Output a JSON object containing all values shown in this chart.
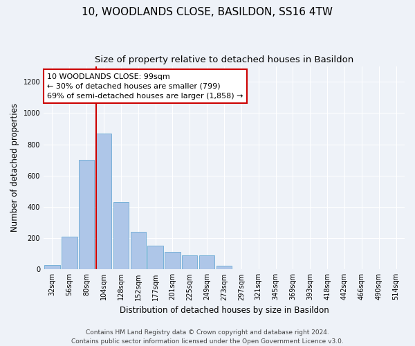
{
  "title": "10, WOODLANDS CLOSE, BASILDON, SS16 4TW",
  "subtitle": "Size of property relative to detached houses in Basildon",
  "xlabel": "Distribution of detached houses by size in Basildon",
  "ylabel": "Number of detached properties",
  "bar_labels": [
    "32sqm",
    "56sqm",
    "80sqm",
    "104sqm",
    "128sqm",
    "152sqm",
    "177sqm",
    "201sqm",
    "225sqm",
    "249sqm",
    "273sqm",
    "297sqm",
    "321sqm",
    "345sqm",
    "369sqm",
    "393sqm",
    "418sqm",
    "442sqm",
    "466sqm",
    "490sqm",
    "514sqm"
  ],
  "bar_values": [
    30,
    210,
    700,
    870,
    430,
    240,
    150,
    110,
    90,
    90,
    25,
    0,
    0,
    0,
    0,
    0,
    0,
    0,
    0,
    0,
    0
  ],
  "bar_color": "#aec6e8",
  "bar_edgecolor": "#6aaad4",
  "property_line_color": "#cc0000",
  "annotation_text": "10 WOODLANDS CLOSE: 99sqm\n← 30% of detached houses are smaller (799)\n69% of semi-detached houses are larger (1,858) →",
  "annotation_box_color": "#ffffff",
  "annotation_box_edgecolor": "#cc0000",
  "ylim": [
    0,
    1300
  ],
  "yticks": [
    0,
    200,
    400,
    600,
    800,
    1000,
    1200
  ],
  "footer_text": "Contains HM Land Registry data © Crown copyright and database right 2024.\nContains public sector information licensed under the Open Government Licence v3.0.",
  "background_color": "#eef2f8",
  "grid_color": "#ffffff",
  "title_fontsize": 11,
  "subtitle_fontsize": 9.5,
  "axis_label_fontsize": 8.5,
  "tick_fontsize": 7,
  "annotation_fontsize": 8,
  "footer_fontsize": 6.5
}
